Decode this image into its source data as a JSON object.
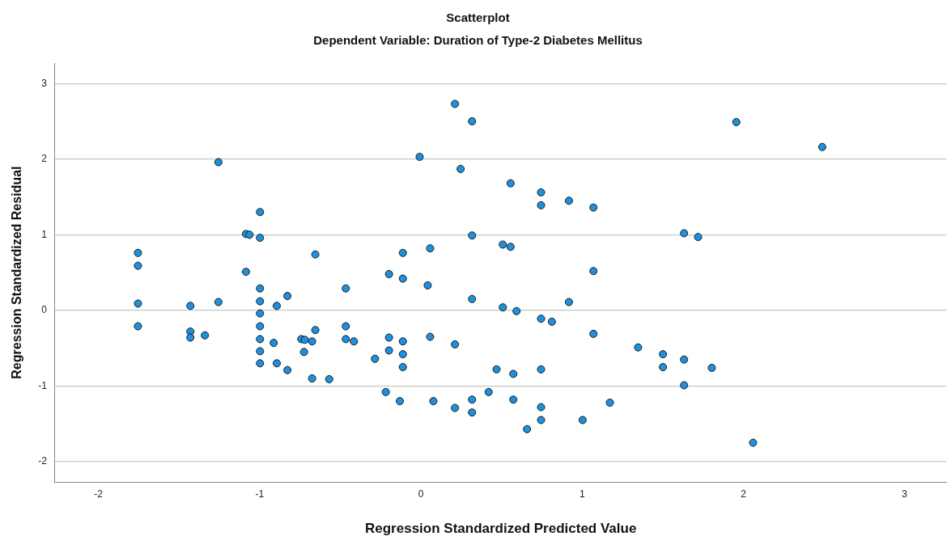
{
  "chart_data": {
    "type": "scatter",
    "title": "Scatterplot",
    "subtitle": "Dependent Variable: Duration of Type-2 Diabetes Mellitus",
    "xlabel": "Regression Standardized Predicted Value",
    "ylabel": "Regression Standardized Residual",
    "xlim": [
      -2.27,
      3.26
    ],
    "ylim": [
      -2.27,
      3.27
    ],
    "xticks": [
      -2,
      -1,
      0,
      1,
      2,
      3
    ],
    "yticks": [
      -2,
      -1,
      0,
      1,
      2,
      3
    ],
    "grid": "y",
    "marker": "circle",
    "legend": false,
    "series": [
      {
        "color": "#1f8fe0",
        "x": [
          -1.755,
          -1.755,
          -1.755,
          -1.755,
          -1.43,
          -1.43,
          -1.43,
          -1.34,
          -1.256,
          -1.256,
          -1.085,
          -1.063,
          -1.085,
          -0.998,
          -0.998,
          -0.998,
          -0.998,
          -0.998,
          -0.998,
          -0.998,
          -0.998,
          -0.998,
          -0.913,
          -0.894,
          -0.894,
          -0.828,
          -0.828,
          -0.742,
          -0.72,
          -0.725,
          -0.675,
          -0.655,
          -0.655,
          -0.675,
          -0.569,
          -0.466,
          -0.466,
          -0.466,
          -0.416,
          -0.285,
          -0.198,
          -0.198,
          -0.198,
          -0.218,
          -0.131,
          -0.112,
          -0.112,
          -0.112,
          -0.112,
          -0.112,
          -0.008,
          0.042,
          0.057,
          0.057,
          0.077,
          0.211,
          0.211,
          0.211,
          0.246,
          0.317,
          0.317,
          0.317,
          0.317,
          0.317,
          0.42,
          0.469,
          0.508,
          0.508,
          0.556,
          0.556,
          0.573,
          0.573,
          0.593,
          0.658,
          0.745,
          0.745,
          0.745,
          0.745,
          0.745,
          0.745,
          0.812,
          0.918,
          0.918,
          1.003,
          1.07,
          1.07,
          1.07,
          1.172,
          1.347,
          1.501,
          1.501,
          1.632,
          1.719,
          1.632,
          1.632,
          1.804,
          1.956,
          2.06,
          2.489
        ],
        "values": [
          0.76,
          0.59,
          0.09,
          -0.21,
          0.06,
          -0.28,
          -0.36,
          -0.33,
          1.96,
          0.11,
          1.01,
          1.0,
          0.51,
          1.3,
          0.96,
          0.29,
          0.12,
          -0.04,
          -0.21,
          -0.38,
          -0.54,
          -0.7,
          -0.43,
          0.06,
          -0.7,
          0.19,
          -0.79,
          -0.38,
          -0.39,
          -0.55,
          -0.41,
          0.74,
          -0.26,
          -0.9,
          -0.91,
          0.29,
          -0.21,
          -0.38,
          -0.41,
          -0.64,
          0.48,
          -0.36,
          -0.53,
          -1.08,
          -1.2,
          0.76,
          0.42,
          -0.41,
          -0.58,
          -0.75,
          2.03,
          0.33,
          0.82,
          -0.35,
          -1.2,
          2.73,
          -0.45,
          -1.29,
          1.87,
          2.5,
          0.99,
          0.15,
          -1.18,
          -1.35,
          -1.08,
          -0.78,
          0.87,
          0.04,
          1.68,
          0.84,
          -0.84,
          -1.18,
          -0.01,
          -1.57,
          1.56,
          1.39,
          -0.11,
          -0.78,
          -1.28,
          -1.45,
          -0.15,
          1.45,
          0.11,
          -1.45,
          1.36,
          0.52,
          -0.31,
          -1.22,
          -0.49,
          -0.58,
          -0.75,
          1.02,
          0.97,
          -0.65,
          -0.99,
          -0.76,
          2.49,
          -1.75,
          2.16
        ]
      }
    ]
  }
}
